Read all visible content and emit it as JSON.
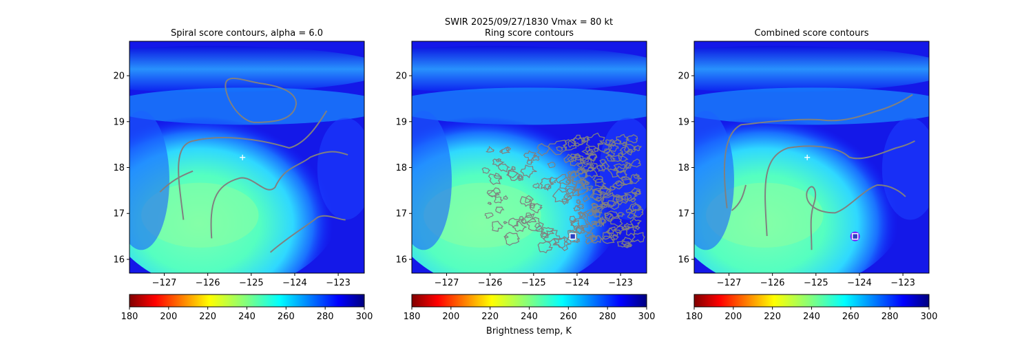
{
  "figure": {
    "suptitle_line1": "SWIR  2025/09/27/1830    Vmax = 80 kt",
    "colorbar_label": "Brightness temp, K"
  },
  "chart_data": [
    {
      "type": "heatmap",
      "title": "Spiral score contours, alpha =  6.0",
      "xlim": [
        -127.8,
        -122.4
      ],
      "ylim": [
        15.7,
        20.75
      ],
      "xticks": [
        "-127",
        "-126",
        "-125",
        "-124",
        "-123"
      ],
      "xtick_values": [
        -127,
        -126,
        -125,
        -124,
        -123
      ],
      "yticks": [
        "16",
        "17",
        "18",
        "19",
        "20"
      ],
      "ytick_values": [
        16,
        17,
        18,
        19,
        20
      ],
      "markers": [
        {
          "symbol": "plus",
          "lon": -125.2,
          "lat": 18.22,
          "color": "#ffffff"
        }
      ],
      "colorbar": {
        "min": 180,
        "max": 300,
        "ticks": [
          "180",
          "200",
          "220",
          "240",
          "260",
          "280",
          "300"
        ],
        "tick_values": [
          180,
          200,
          220,
          240,
          260,
          280,
          300
        ]
      }
    },
    {
      "type": "heatmap",
      "title": "Ring score contours",
      "xlim": [
        -127.8,
        -122.4
      ],
      "ylim": [
        15.7,
        20.75
      ],
      "xticks": [
        "-127",
        "-126",
        "-125",
        "-124",
        "-123"
      ],
      "xtick_values": [
        -127,
        -126,
        -125,
        -124,
        -123
      ],
      "yticks": [
        "16",
        "17",
        "18",
        "19",
        "20"
      ],
      "ytick_values": [
        16,
        17,
        18,
        19,
        20
      ],
      "markers": [
        {
          "symbol": "square",
          "lon": -124.1,
          "lat": 16.5,
          "color": "#ffffff"
        }
      ],
      "colorbar": {
        "min": 180,
        "max": 300,
        "ticks": [
          "180",
          "200",
          "220",
          "240",
          "260",
          "280",
          "300"
        ],
        "tick_values": [
          180,
          200,
          220,
          240,
          260,
          280,
          300
        ]
      }
    },
    {
      "type": "heatmap",
      "title": "Combined score contours",
      "xlim": [
        -127.8,
        -122.4
      ],
      "ylim": [
        15.7,
        20.75
      ],
      "xticks": [
        "-127",
        "-126",
        "-125",
        "-124",
        "-123"
      ],
      "xtick_values": [
        -127,
        -126,
        -125,
        -124,
        -123
      ],
      "yticks": [
        "16",
        "17",
        "18",
        "19",
        "20"
      ],
      "ytick_values": [
        16,
        17,
        18,
        19,
        20
      ],
      "markers": [
        {
          "symbol": "plus",
          "lon": -125.2,
          "lat": 18.22,
          "color": "#ffffff"
        },
        {
          "symbol": "circle",
          "lon": -124.1,
          "lat": 16.5,
          "color": "#7a1cff"
        },
        {
          "symbol": "square",
          "lon": -124.1,
          "lat": 16.5,
          "color": "#ffffff"
        }
      ],
      "colorbar": {
        "min": 180,
        "max": 300,
        "ticks": [
          "180",
          "200",
          "220",
          "240",
          "260",
          "280",
          "300"
        ],
        "tick_values": [
          180,
          200,
          220,
          240,
          260,
          280,
          300
        ]
      }
    }
  ],
  "colors": {
    "contour": "#808080",
    "colormap": [
      "#800000",
      "#ff0000",
      "#ff8000",
      "#ffff00",
      "#80ff80",
      "#00ffff",
      "#0080ff",
      "#0000ff",
      "#000080"
    ]
  }
}
